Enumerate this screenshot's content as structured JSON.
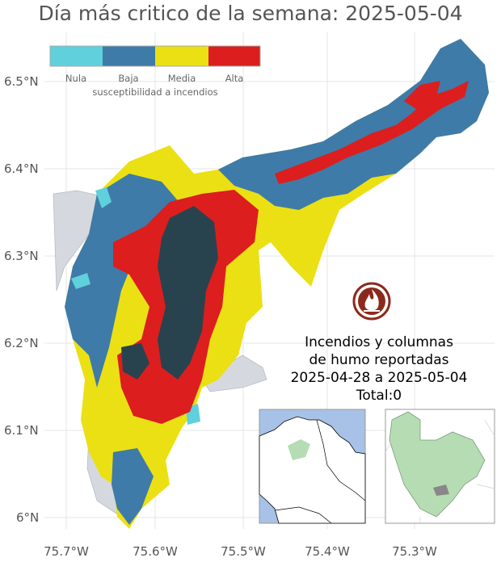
{
  "title": "Día más critico de la semana: 2025-05-04",
  "axes": {
    "x_ticks": [
      "75.7°W",
      "75.6°W",
      "75.5°W",
      "75.4°W",
      "75.3°W"
    ],
    "y_ticks": [
      "6.5°N",
      "6.4°N",
      "6.3°N",
      "6.2°N",
      "6.1°N",
      "6°N"
    ],
    "grid": true
  },
  "legend": {
    "title": "susceptibilidad a incendios",
    "items": [
      {
        "label": "Nula",
        "color": "#5fd0dc"
      },
      {
        "label": "Baja",
        "color": "#3e7ba8"
      },
      {
        "label": "Media",
        "color": "#ebe013"
      },
      {
        "label": "Alta",
        "color": "#dc1e1e"
      }
    ],
    "placement": "top-left"
  },
  "colors": {
    "background_area": "#d5d8de",
    "dense_cover": "#28434d",
    "inset_ocean": "#a7c2e6",
    "inset_highlight": "#b6dcb4",
    "fire_icon": "#8b2a1c"
  },
  "fire_icon": "fire-icon",
  "report": {
    "line1": "Incendios y columnas",
    "line2": "de humo reportadas",
    "line3": "2025-04-28 a 2025-05-04",
    "line4": "Total:0"
  }
}
